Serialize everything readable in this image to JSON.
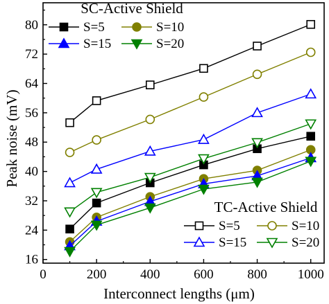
{
  "chart_data": {
    "type": "line",
    "xlabel": "Interconnect lengths (μm)",
    "ylabel": "Peak noise (mV)",
    "xlim": [
      0,
      1050
    ],
    "ylim": [
      15,
      86
    ],
    "xticks": [
      0,
      200,
      400,
      600,
      800,
      1000
    ],
    "yticks": [
      16,
      24,
      32,
      40,
      48,
      56,
      64,
      72,
      80
    ],
    "grid": false,
    "legends": [
      {
        "title": "SC-Active Shield",
        "placement": "top-left",
        "entries": [
          "S=5",
          "S=10",
          "S=15",
          "S=20"
        ]
      },
      {
        "title": "TC-Active Shield",
        "placement": "lower-right",
        "entries": [
          "S=5",
          "S=10",
          "S=15",
          "S=20"
        ]
      }
    ],
    "x": [
      100,
      200,
      400,
      600,
      800,
      1000
    ],
    "series": [
      {
        "name": "S=5",
        "group": "SC-Active Shield",
        "marker": "square",
        "filled": true,
        "color": "#000000",
        "values": [
          24.3,
          31.4,
          36.9,
          41.8,
          46.2,
          49.6
        ]
      },
      {
        "name": "S=10",
        "group": "SC-Active Shield",
        "marker": "circle",
        "filled": true,
        "color": "#808000",
        "values": [
          20.8,
          27.5,
          33.1,
          38.0,
          40.3,
          45.9
        ]
      },
      {
        "name": "S=15",
        "group": "SC-Active Shield",
        "marker": "triangle-up",
        "filled": true,
        "color": "#0000ff",
        "values": [
          19.7,
          26.4,
          31.8,
          36.6,
          38.8,
          43.7
        ]
      },
      {
        "name": "S=20",
        "group": "SC-Active Shield",
        "marker": "triangle-down",
        "filled": true,
        "color": "#008000",
        "values": [
          18.2,
          25.4,
          30.1,
          35.2,
          37.1,
          42.8
        ]
      },
      {
        "name": "S=5",
        "group": "TC-Active Shield",
        "marker": "square",
        "filled": false,
        "color": "#000000",
        "values": [
          53.3,
          59.3,
          63.6,
          68.1,
          74.2,
          80.1
        ]
      },
      {
        "name": "S=10",
        "group": "TC-Active Shield",
        "marker": "circle",
        "filled": false,
        "color": "#808000",
        "values": [
          45.2,
          48.6,
          54.2,
          60.3,
          66.5,
          72.5
        ]
      },
      {
        "name": "S=15",
        "group": "TC-Active Shield",
        "marker": "triangle-up",
        "filled": false,
        "color": "#0000ff",
        "values": [
          36.9,
          40.6,
          45.5,
          48.7,
          56.0,
          61.1
        ]
      },
      {
        "name": "S=20",
        "group": "TC-Active Shield",
        "marker": "triangle-down",
        "filled": false,
        "color": "#008000",
        "values": [
          29.0,
          34.3,
          38.4,
          43.5,
          47.9,
          53.0
        ]
      }
    ]
  }
}
